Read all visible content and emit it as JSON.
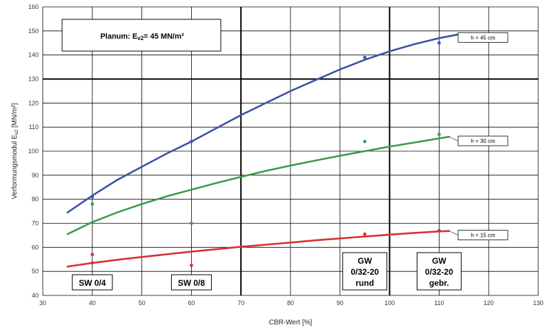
{
  "chart_data": {
    "type": "line",
    "title_box": {
      "prefix": "Planum: E",
      "sub": "v2",
      "suffix": "= 45 MN/m²"
    },
    "xlabel": "CBR-Wert  [%]",
    "ylabel": "Verformungsmodul  E",
    "ylabel_sub": "v2",
    "ylabel_suffix": " [MN/m²]",
    "xlim": [
      30,
      130
    ],
    "ylim": [
      40,
      160
    ],
    "xticks": [
      30,
      40,
      50,
      60,
      70,
      80,
      90,
      100,
      110,
      120,
      130
    ],
    "yticks": [
      40,
      50,
      60,
      70,
      80,
      90,
      100,
      110,
      120,
      130,
      140,
      150,
      160
    ],
    "grid": true,
    "vertical_lines": [
      70,
      100
    ],
    "horizontal_lines": [
      130
    ],
    "series": [
      {
        "name": "h = 45 cm",
        "color": "#3a52a8",
        "line": {
          "x": [
            35,
            40,
            45,
            50,
            55,
            60,
            65,
            70,
            75,
            80,
            85,
            90,
            95,
            100,
            105,
            110,
            115
          ],
          "y": [
            74.5,
            81.5,
            88,
            93.5,
            99,
            104,
            109.5,
            115,
            120,
            125,
            129.5,
            134,
            138,
            141.5,
            144.5,
            147,
            149
          ]
        },
        "points": {
          "x": [
            40,
            60,
            95,
            110
          ],
          "y": [
            81,
            104,
            139,
            145
          ]
        },
        "label_x": 113
      },
      {
        "name": "h = 30 cm",
        "color": "#3a9a4a",
        "line": {
          "x": [
            35,
            40,
            45,
            50,
            55,
            60,
            65,
            70,
            75,
            80,
            85,
            90,
            95,
            100,
            105,
            110,
            112
          ],
          "y": [
            65.5,
            70.5,
            74.5,
            78,
            81.2,
            84,
            86.7,
            89.3,
            91.8,
            94,
            96.1,
            98.1,
            100,
            101.9,
            103.6,
            105.3,
            106
          ]
        },
        "points": {
          "x": [
            40,
            60,
            95,
            110
          ],
          "y": [
            78,
            70,
            104,
            107
          ]
        },
        "label_x": 113
      },
      {
        "name": "h = 15 cm",
        "color": "#d83030",
        "line": {
          "x": [
            35,
            40,
            45,
            50,
            55,
            60,
            65,
            70,
            75,
            80,
            85,
            90,
            95,
            100,
            105,
            110,
            112
          ],
          "y": [
            52,
            53.5,
            54.8,
            56,
            57.1,
            58.2,
            59.2,
            60.2,
            61.1,
            62,
            62.9,
            63.7,
            64.5,
            65.3,
            66,
            66.6,
            66.8
          ]
        },
        "points": {
          "x": [
            40,
            40,
            60,
            95,
            110
          ],
          "y": [
            57,
            53.5,
            52.5,
            65.5,
            67
          ]
        },
        "label_x": 113
      }
    ],
    "materials": [
      {
        "x": 40,
        "lines": [
          "SW 0/4"
        ]
      },
      {
        "x": 60,
        "lines": [
          "SW 0/8"
        ]
      },
      {
        "x": 95,
        "lines": [
          "GW",
          "0/32-20",
          "rund"
        ]
      },
      {
        "x": 110,
        "lines": [
          "GW",
          "0/32-20",
          "gebr."
        ]
      }
    ]
  }
}
